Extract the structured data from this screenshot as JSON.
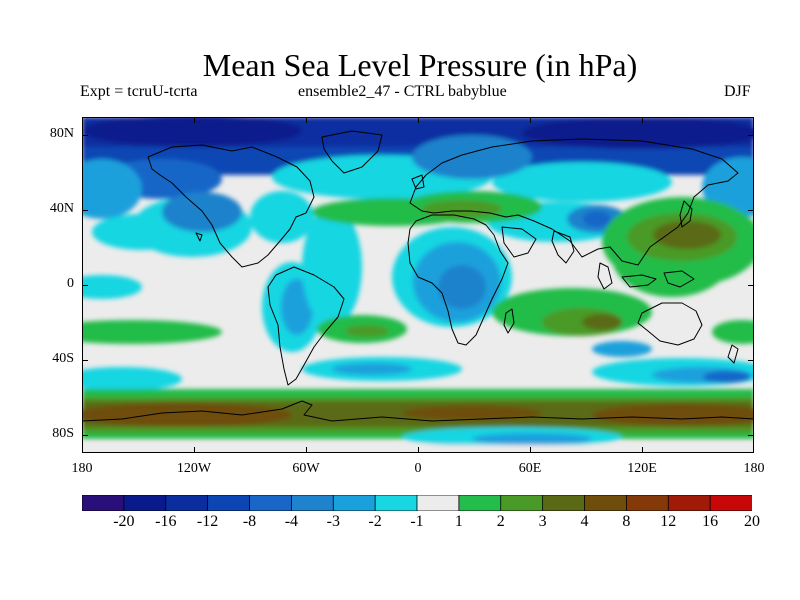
{
  "title": "Mean Sea Level Pressure (in hPa)",
  "subtitle_left": "Expt = tcruU-tcrta",
  "subtitle_center": "ensemble2_47 - CTRL babyblue",
  "season": "DJF",
  "y_axis_labels": [
    "80N",
    "40N",
    "0",
    "40S",
    "80S"
  ],
  "x_axis_labels": [
    "180",
    "120W",
    "60W",
    "0",
    "60E",
    "120E",
    "180"
  ],
  "colorbar": {
    "labels": [
      "-20",
      "-16",
      "-12",
      "-8",
      "-4",
      "-3",
      "-2",
      "-1",
      "1",
      "2",
      "3",
      "4",
      "8",
      "12",
      "16",
      "20"
    ],
    "colors": [
      "#2a0f7a",
      "#0a1a8c",
      "#0a2ea0",
      "#0b46b4",
      "#1866c8",
      "#1e82cc",
      "#1aa0dc",
      "#18d6e2",
      "#ececec",
      "#24bc4a",
      "#4a9a28",
      "#5a6a14",
      "#6e4e0a",
      "#843a08",
      "#a01a08",
      "#c80808"
    ]
  },
  "map": {
    "projection": "cylindrical-equidistant",
    "lon_range": [
      -180,
      180
    ],
    "lat_range": [
      -90,
      90
    ],
    "field": "msl-pressure-anomaly",
    "coastlines": true
  }
}
